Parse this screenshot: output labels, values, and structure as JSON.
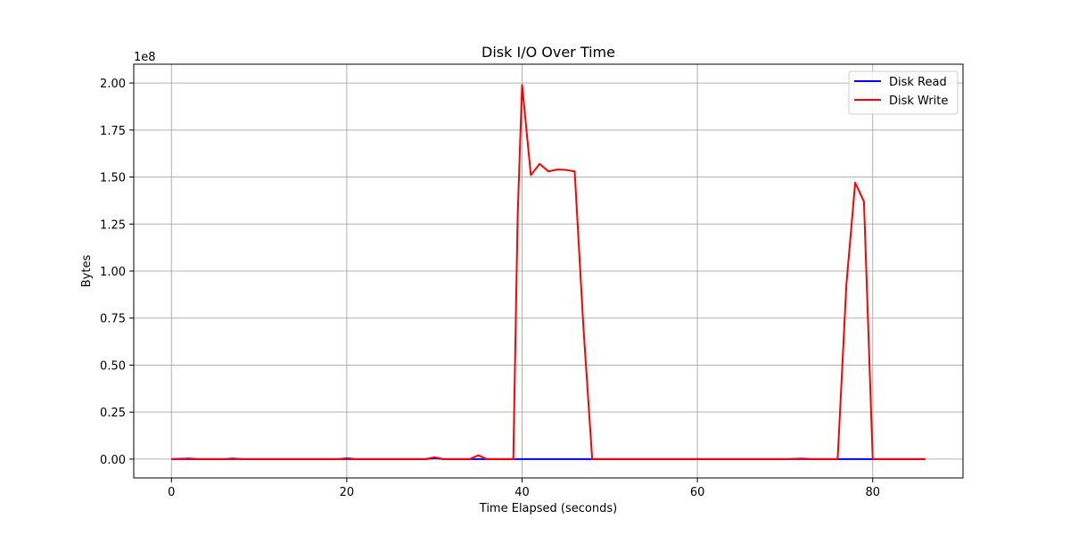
{
  "chart_data": {
    "type": "line",
    "title": "Disk I/O Over Time",
    "xlabel": "Time Elapsed (seconds)",
    "ylabel": "Bytes",
    "y_offset_label": "1e8",
    "xlim": [
      -4.3,
      90.3
    ],
    "ylim": [
      -10000000,
      210000000
    ],
    "x_ticks": [
      0,
      20,
      40,
      60,
      80
    ],
    "x_tick_labels": [
      "0",
      "20",
      "40",
      "60",
      "80"
    ],
    "y_ticks": [
      0,
      25000000,
      50000000,
      75000000,
      100000000,
      125000000,
      150000000,
      175000000,
      200000000
    ],
    "y_tick_labels": [
      "0.00",
      "0.25",
      "0.50",
      "0.75",
      "1.00",
      "1.25",
      "1.50",
      "1.75",
      "2.00"
    ],
    "grid": true,
    "legend_position": "top-right",
    "series": [
      {
        "name": "Disk Read",
        "color": "#0000ff",
        "points": [
          [
            0,
            0
          ],
          [
            5,
            0
          ],
          [
            10,
            0
          ],
          [
            15,
            0
          ],
          [
            20,
            0
          ],
          [
            25,
            0
          ],
          [
            29,
            0
          ],
          [
            30,
            500000
          ],
          [
            31,
            0
          ],
          [
            35,
            0
          ],
          [
            40,
            0
          ],
          [
            45,
            0
          ],
          [
            50,
            0
          ],
          [
            55,
            0
          ],
          [
            60,
            0
          ],
          [
            65,
            0
          ],
          [
            70,
            0
          ],
          [
            75,
            0
          ],
          [
            80,
            0
          ],
          [
            86,
            0
          ]
        ]
      },
      {
        "name": "Disk Write",
        "color": "#ff0000",
        "points": [
          [
            0,
            0
          ],
          [
            2,
            400000
          ],
          [
            3,
            0
          ],
          [
            6,
            0
          ],
          [
            7,
            400000
          ],
          [
            8,
            0
          ],
          [
            19,
            0
          ],
          [
            20,
            500000
          ],
          [
            21,
            0
          ],
          [
            29,
            0
          ],
          [
            30,
            1000000
          ],
          [
            31,
            0
          ],
          [
            34,
            0
          ],
          [
            35,
            2000000
          ],
          [
            36,
            0
          ],
          [
            38,
            0
          ],
          [
            39,
            0
          ],
          [
            39.5,
            130000000
          ],
          [
            40,
            199000000
          ],
          [
            41,
            151000000
          ],
          [
            42,
            157000000
          ],
          [
            43,
            153000000
          ],
          [
            44,
            154000000
          ],
          [
            45,
            153800000
          ],
          [
            46,
            153000000
          ],
          [
            47,
            70000000
          ],
          [
            48,
            0
          ],
          [
            50,
            0
          ],
          [
            60,
            0
          ],
          [
            70,
            0
          ],
          [
            72,
            300000
          ],
          [
            73,
            0
          ],
          [
            76,
            0
          ],
          [
            77,
            93000000
          ],
          [
            78,
            147000000
          ],
          [
            79,
            137000000
          ],
          [
            80,
            0
          ],
          [
            82,
            0
          ],
          [
            86,
            0
          ]
        ]
      }
    ]
  }
}
